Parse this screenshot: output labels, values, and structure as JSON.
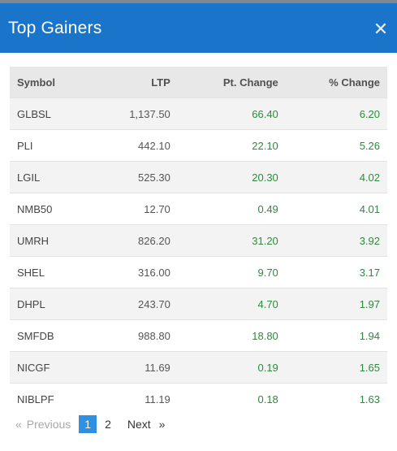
{
  "dialog": {
    "title": "Top Gainers",
    "close_glyph": "✕",
    "accent_color": "#1a74c9"
  },
  "table": {
    "headers": {
      "symbol": "Symbol",
      "ltp": "LTP",
      "pt_change": "Pt. Change",
      "pct_change": "% Change"
    },
    "rows": [
      {
        "symbol": "GLBSL",
        "ltp": "1,137.50",
        "pt_change": "66.40",
        "pct_change": "6.20"
      },
      {
        "symbol": "PLI",
        "ltp": "442.10",
        "pt_change": "22.10",
        "pct_change": "5.26"
      },
      {
        "symbol": "LGIL",
        "ltp": "525.30",
        "pt_change": "20.30",
        "pct_change": "4.02"
      },
      {
        "symbol": "NMB50",
        "ltp": "12.70",
        "pt_change": "0.49",
        "pct_change": "4.01"
      },
      {
        "symbol": "UMRH",
        "ltp": "826.20",
        "pt_change": "31.20",
        "pct_change": "3.92"
      },
      {
        "symbol": "SHEL",
        "ltp": "316.00",
        "pt_change": "9.70",
        "pct_change": "3.17"
      },
      {
        "symbol": "DHPL",
        "ltp": "243.70",
        "pt_change": "4.70",
        "pct_change": "1.97"
      },
      {
        "symbol": "SMFDB",
        "ltp": "988.80",
        "pt_change": "18.80",
        "pct_change": "1.94"
      },
      {
        "symbol": "NICGF",
        "ltp": "11.69",
        "pt_change": "0.19",
        "pct_change": "1.65"
      },
      {
        "symbol": "NIBLPF",
        "ltp": "11.19",
        "pt_change": "0.18",
        "pct_change": "1.63"
      }
    ],
    "positive_color": "#2d8a3e"
  },
  "pagination": {
    "prev_glyph": "«",
    "prev_label": "Previous",
    "pages": [
      "1",
      "2"
    ],
    "active_page": "1",
    "next_label": "Next",
    "next_glyph": "»"
  }
}
